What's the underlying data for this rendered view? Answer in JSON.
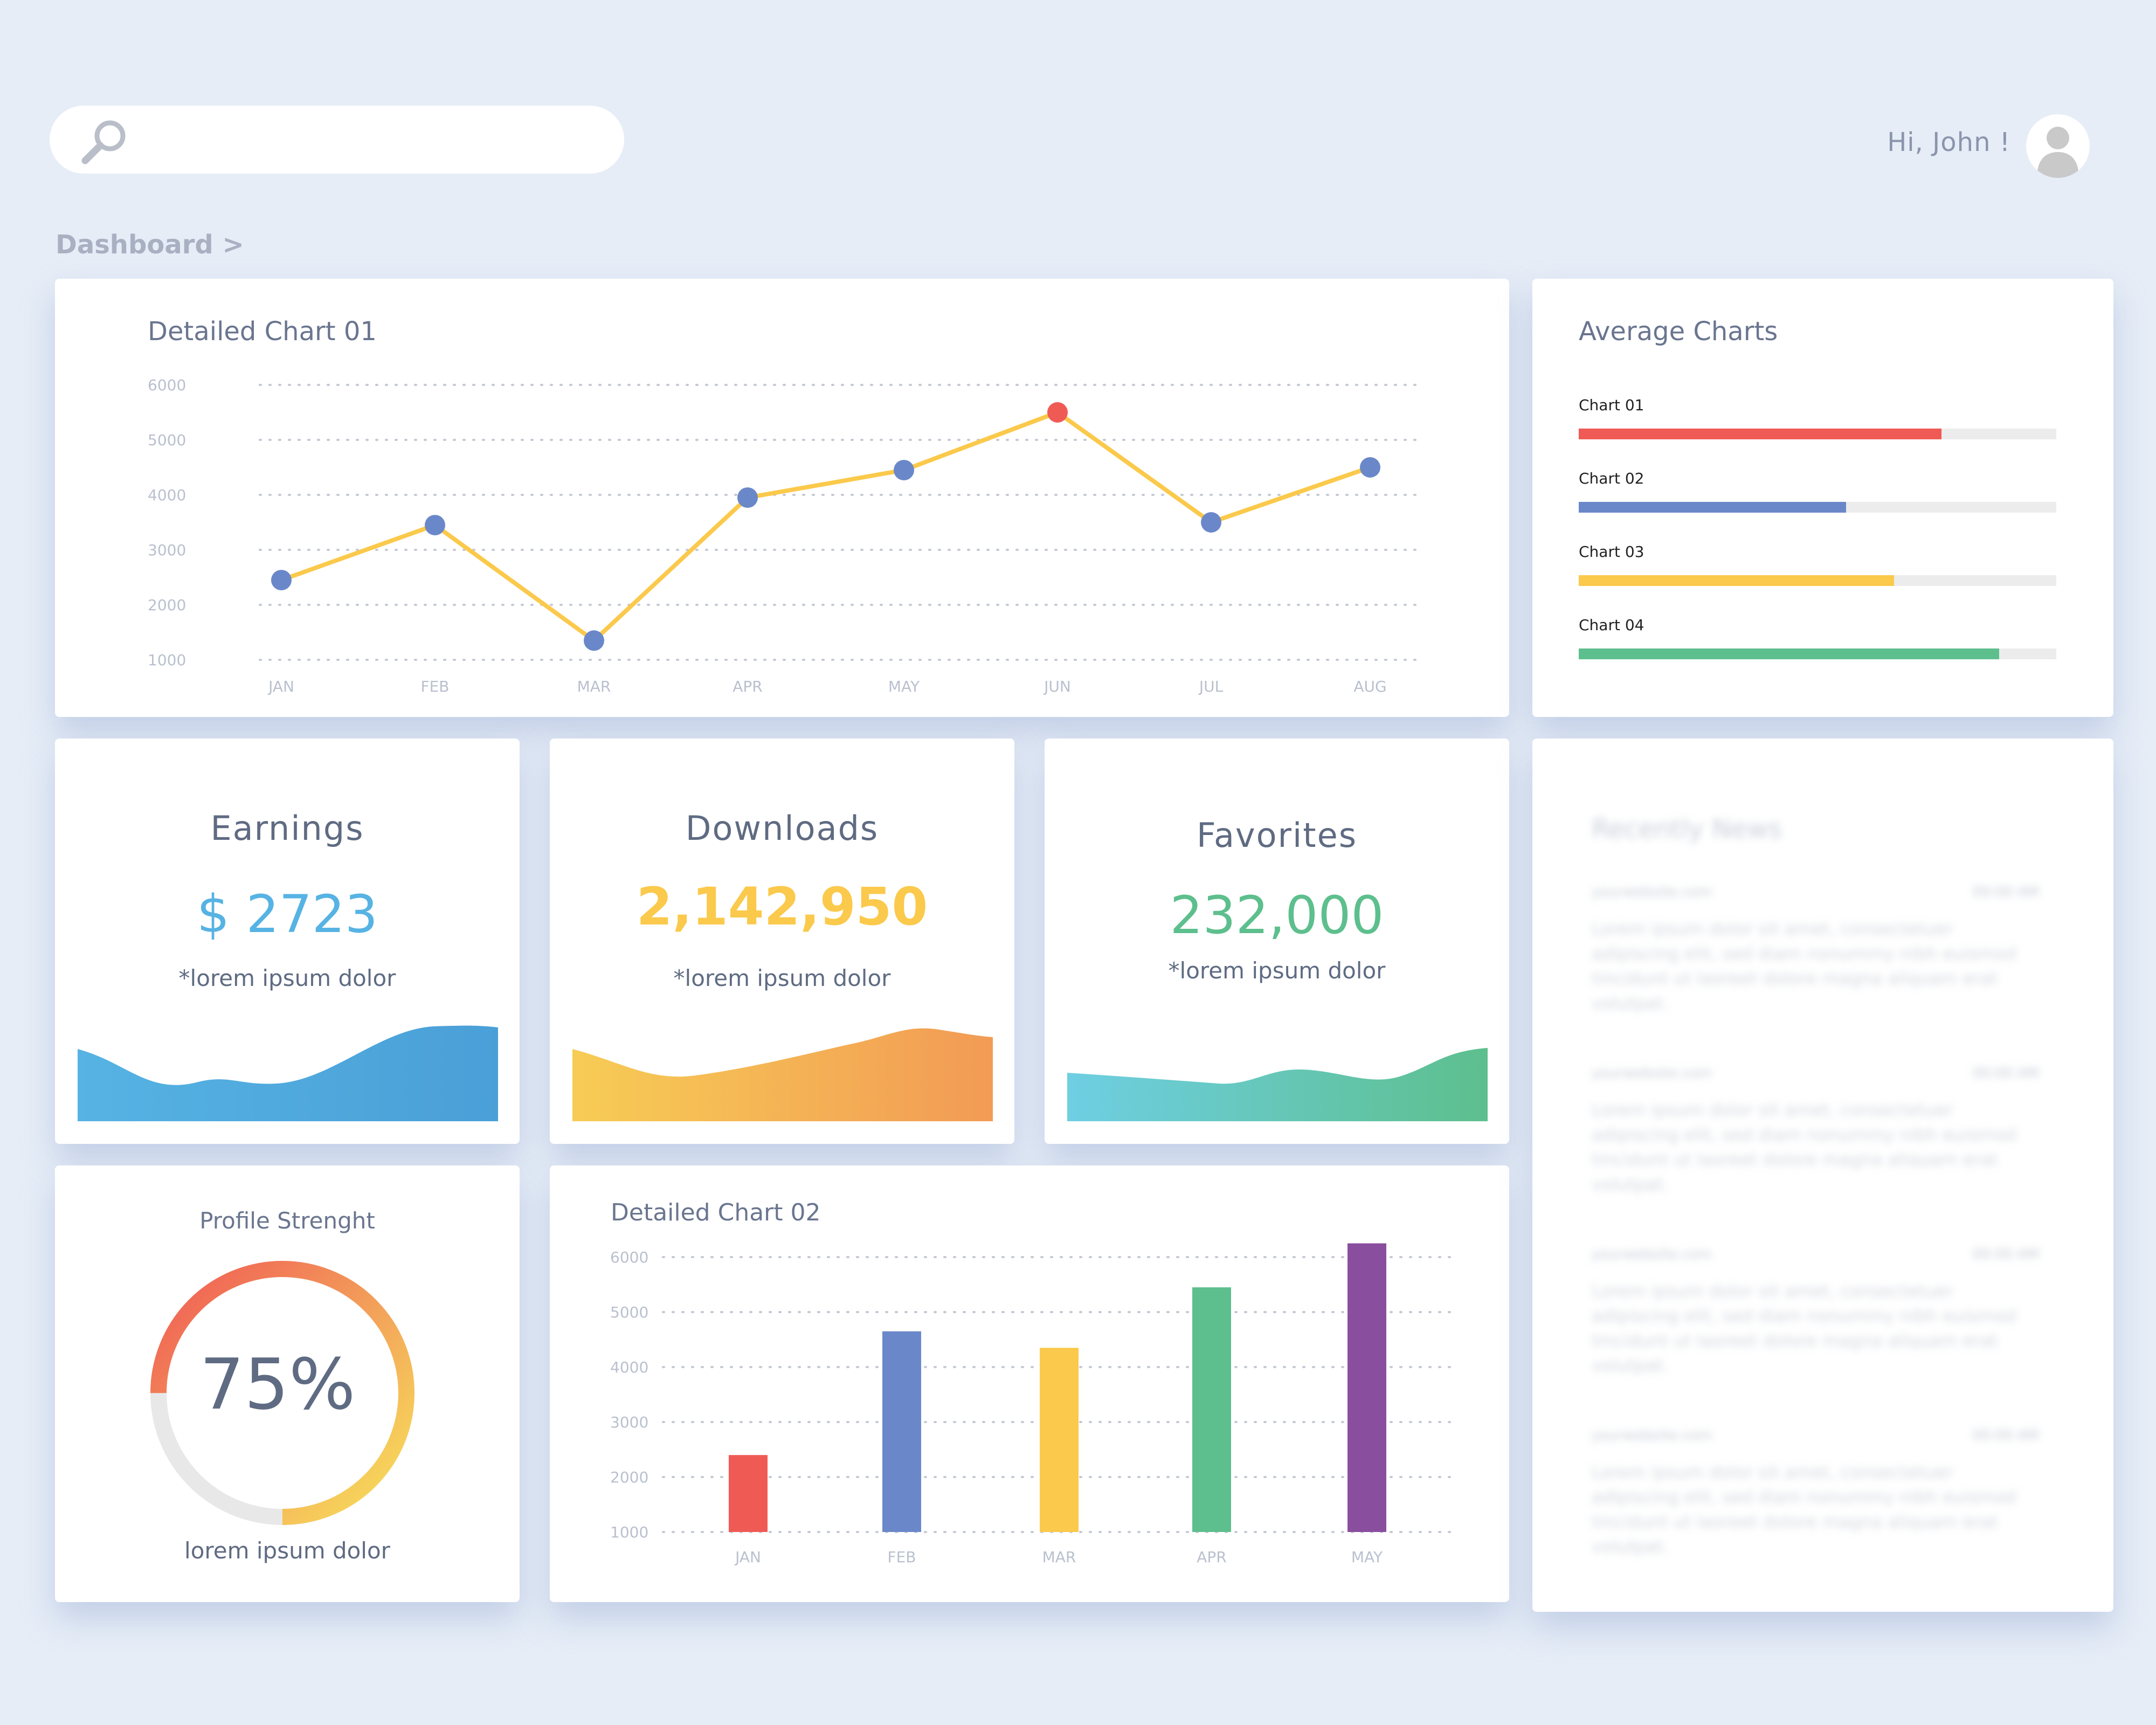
{
  "header": {
    "search_placeholder": "",
    "greeting": "Hi, John !",
    "breadcrumb": "Dashboard >"
  },
  "chart1": {
    "title": "Detailed Chart 01",
    "line_color": "#fbc94b",
    "point_color": "#6a88c9",
    "highlight_color": "#f05a55",
    "chart_data": {
      "type": "line",
      "title": "Detailed Chart 01",
      "categories": [
        "JAN",
        "FEB",
        "MAR",
        "APR",
        "MAY",
        "JUN",
        "JUL",
        "AUG"
      ],
      "values": [
        2450,
        3450,
        1350,
        3950,
        4450,
        5500,
        3500,
        4500
      ],
      "highlight_index": 5,
      "yticks": [
        "6000",
        "5000",
        "4000",
        "3000",
        "2000",
        "1000"
      ],
      "ylim": [
        1000,
        6000
      ],
      "grid": true
    }
  },
  "average": {
    "title": "Average Charts",
    "items": [
      {
        "label": "Chart 01",
        "value": 0.76,
        "color": "#f05a55"
      },
      {
        "label": "Chart 02",
        "value": 0.56,
        "color": "#6a88c9"
      },
      {
        "label": "Chart 03",
        "value": 0.66,
        "color": "#fbc94b"
      },
      {
        "label": "Chart 04",
        "value": 0.88,
        "color": "#5dbf8d"
      }
    ]
  },
  "stats": {
    "earnings": {
      "title": "Earnings",
      "value": "$ 2723",
      "caption": "*lorem ipsum dolor",
      "color": "#56b3e3"
    },
    "downloads": {
      "title": "Downloads",
      "value": "2,142,950",
      "caption": "*lorem ipsum dolor",
      "color": "#fbc94b"
    },
    "favorites": {
      "title": "Favorites",
      "value": "232,000",
      "caption": "*lorem ipsum dolor",
      "color": "#5dbf8d"
    }
  },
  "profile": {
    "title": "Profile Strenght",
    "percent": "75%",
    "progress": 0.75,
    "caption": "lorem ipsum dolor"
  },
  "chart2": {
    "title": "Detailed Chart 02",
    "chart_data": {
      "type": "bar",
      "title": "Detailed Chart 02",
      "categories": [
        "JAN",
        "FEB",
        "MAR",
        "APR",
        "MAY"
      ],
      "values": [
        2400,
        4650,
        4350,
        5450,
        6250
      ],
      "colors": [
        "#f05a55",
        "#6a88c9",
        "#fbc94b",
        "#5dbf8d",
        "#8a4e9f"
      ],
      "yticks": [
        "6000",
        "5000",
        "4000",
        "3000",
        "2000",
        "1000"
      ],
      "ylim": [
        1000,
        6000
      ],
      "grid": true
    }
  },
  "news": {
    "title": "Recently News",
    "items": [
      {
        "source": "yourwebsite.com",
        "time": "00:00 AM",
        "text": "Lorem ipsum dolor sit amet, consectetuer adipiscing elit, sed diam nonummy nibh euismod tincidunt ut laoreet dolore magna aliquam erat volutpat."
      },
      {
        "source": "yourwebsite.com",
        "time": "00:00 AM",
        "text": "Lorem ipsum dolor sit amet, consectetuer adipiscing elit, sed diam nonummy nibh euismod tincidunt ut laoreet dolore magna aliquam erat volutpat."
      },
      {
        "source": "yourwebsite.com",
        "time": "00:00 AM",
        "text": "Lorem ipsum dolor sit amet, consectetuer adipiscing elit, sed diam nonummy nibh euismod tincidunt ut laoreet dolore magna aliquam erat volutpat."
      },
      {
        "source": "yourwebsite.com",
        "time": "00:00 AM",
        "text": "Lorem ipsum dolor sit amet, consectetuer adipiscing elit, sed diam nonummy nibh euismod tincidunt ut laoreet dolore magna aliquam erat volutpat."
      }
    ]
  }
}
